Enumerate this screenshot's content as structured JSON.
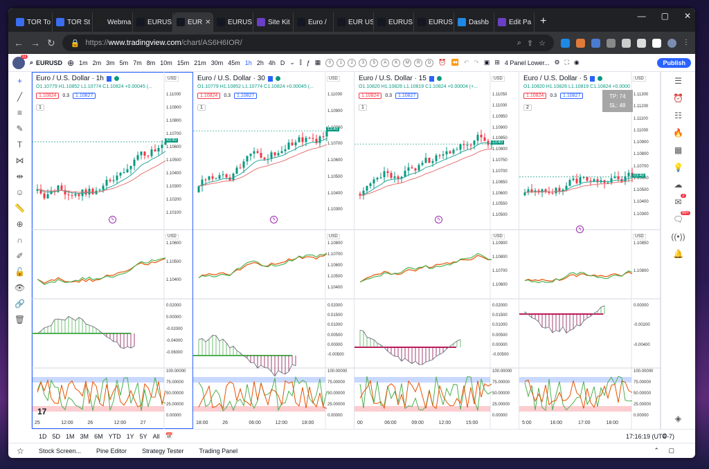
{
  "browser": {
    "tabs": [
      {
        "label": "TOR To",
        "color": "#3a6df0"
      },
      {
        "label": "TOR St",
        "color": "#3a6df0"
      },
      {
        "label": "Webma",
        "color": "#222222"
      },
      {
        "label": "EURUS",
        "color": "#131722"
      },
      {
        "label": "EUR",
        "color": "#131722"
      },
      {
        "label": "EURUS",
        "color": "#131722"
      },
      {
        "label": "Site Kit",
        "color": "#6a3fc4"
      },
      {
        "label": "Euro /",
        "color": "#131722"
      },
      {
        "label": "EUR US",
        "color": "#131722"
      },
      {
        "label": "EURUS",
        "color": "#131722"
      },
      {
        "label": "EURUS",
        "color": "#131722"
      },
      {
        "label": "Dashb",
        "color": "#1e88e5"
      },
      {
        "label": "Edit Pa",
        "color": "#6a3fc4"
      }
    ],
    "active_tab_index": 4,
    "url_prefix": "https://",
    "url_host": "www.tradingview.com",
    "url_path": "/chart/AS6H6IOR/"
  },
  "toolbar": {
    "avatar_badge": "11",
    "symbol": "EURUSD",
    "intervals": [
      "1m",
      "2m",
      "3m",
      "5m",
      "7m",
      "8m",
      "10m",
      "15m",
      "21m",
      "30m",
      "45m",
      "1h",
      "2h",
      "4h",
      "D"
    ],
    "selected_interval": "1h",
    "indicator_circles": [
      "0",
      "1",
      "2",
      "3",
      "5",
      "A",
      "K",
      "M",
      "R",
      "D"
    ],
    "layout_label": "4 Panel Lower...",
    "publish_label": "Publish"
  },
  "panels": [
    {
      "title": "Euro / U.S. Dollar · 1h",
      "ohlc": "O1.10779 H1.10852 L1.10774 C1.10824 +0.00045 (...",
      "sell": "1.10824",
      "spread": "0.3",
      "buy": "1.10827",
      "count": "1",
      "currency": "USD",
      "price_ticks": [
        "1.11000",
        "1.10900",
        "1.10800",
        "1.10700",
        "1.10600",
        "1.10500",
        "1.10400",
        "1.10300",
        "1.10200",
        "1.10100"
      ],
      "price_label": "43:40",
      "osc1_ticks": [
        "1.10600",
        "1.10500",
        "1.10400"
      ],
      "osc2_ticks": [
        "0.02000",
        "0.00000",
        "-0.02000",
        "-0.04000",
        "-0.06000"
      ],
      "stoch_ticks": [
        "100.00000",
        "75.00000",
        "50.00000",
        "25.00000",
        "0.00000"
      ],
      "time_ticks": [
        "25",
        "12:00",
        "26",
        "12:00",
        "27"
      ]
    },
    {
      "title": "Euro / U.S. Dollar · 30",
      "ohlc": "O1.10779 H1.10852 L1.10774 C1.10824 +0.00045 (...",
      "sell": "1.10824",
      "spread": "0.3",
      "buy": "1.10827",
      "count": "1",
      "currency": "USD",
      "price_ticks": [
        "1.11000",
        "1.10900",
        "1.10800",
        "1.10700",
        "1.10600",
        "1.10500",
        "1.10400",
        "1.10300"
      ],
      "price_label": "13:40",
      "osc1_ticks": [
        "1.10800",
        "1.10700",
        "1.10600",
        "1.10500",
        "1.10400"
      ],
      "osc2_ticks": [
        "0.02000",
        "0.01500",
        "0.01000",
        "0.00500",
        "0.00000",
        "-0.00500"
      ],
      "stoch_ticks": [
        "100.00000",
        "75.00000",
        "50.00000",
        "25.00000",
        "0.00000"
      ],
      "time_ticks": [
        "18:00",
        "26",
        "06:00",
        "12:00",
        "18:00"
      ]
    },
    {
      "title": "Euro / U.S. Dollar · 15",
      "ohlc": "O1.10820 H1.10826 L1.10819 C1.10824 +0.00004 (+...",
      "sell": "1.10824",
      "spread": "0.3",
      "buy": "1.10827",
      "count": "1",
      "currency": "USD",
      "price_ticks": [
        "1.11050",
        "1.11000",
        "1.10950",
        "1.10900",
        "1.10850",
        "1.10800",
        "1.10750",
        "1.10700",
        "1.10650",
        "1.10600",
        "1.10550",
        "1.10500"
      ],
      "price_label": "13:40",
      "osc1_ticks": [
        "1.10900",
        "1.10800",
        "1.10700",
        "1.10600"
      ],
      "osc2_ticks": [
        "0.02000",
        "0.01500",
        "0.01000",
        "0.00500",
        "0.00000",
        "-0.00500"
      ],
      "stoch_ticks": [
        "100.00000",
        "75.00000",
        "50.00000",
        "25.00000",
        "0.00000"
      ],
      "time_ticks": [
        "00",
        "06:00",
        "09:00",
        "12:00",
        "15:00"
      ]
    },
    {
      "title": "Euro / U.S. Dollar · 5",
      "ohlc": "O1.10820 H1.10826 L1.10819 C1.10824 +0.0000",
      "sell": "1.10824",
      "spread": "0.3",
      "buy": "1.10827",
      "count": "2",
      "currency": "USD",
      "price_ticks": [
        "1.11300",
        "1.11200",
        "1.11100",
        "1.11000",
        "1.10900",
        "1.10800",
        "1.10700",
        "1.10600",
        "1.10500",
        "1.10400",
        "1.10300"
      ],
      "price_label": "03:40",
      "osc1_ticks": [
        "1.10850",
        "1.10800"
      ],
      "osc2_ticks": [
        "0.00000",
        "-0.00200",
        "-0.00400"
      ],
      "stoch_ticks": [
        "100.00000",
        "75.00000",
        "50.00000",
        "25.00000",
        "0.00000"
      ],
      "time_ticks": [
        "5:00",
        "16:00",
        "17:00",
        "18:00"
      ],
      "tp_label": "TP: 74",
      "sl_label": "SL: 48"
    }
  ],
  "bottom": {
    "ranges": [
      "1D",
      "5D",
      "1M",
      "3M",
      "6M",
      "YTD",
      "1Y",
      "5Y",
      "All"
    ],
    "clock": "17:16:19 (UTC-7)"
  },
  "panel_tabs": [
    "Stock Screen...",
    "Pine Editor",
    "Strategy Tester",
    "Trading Panel"
  ],
  "right_badges": {
    "alerts": "2",
    "notifications": "99+"
  }
}
